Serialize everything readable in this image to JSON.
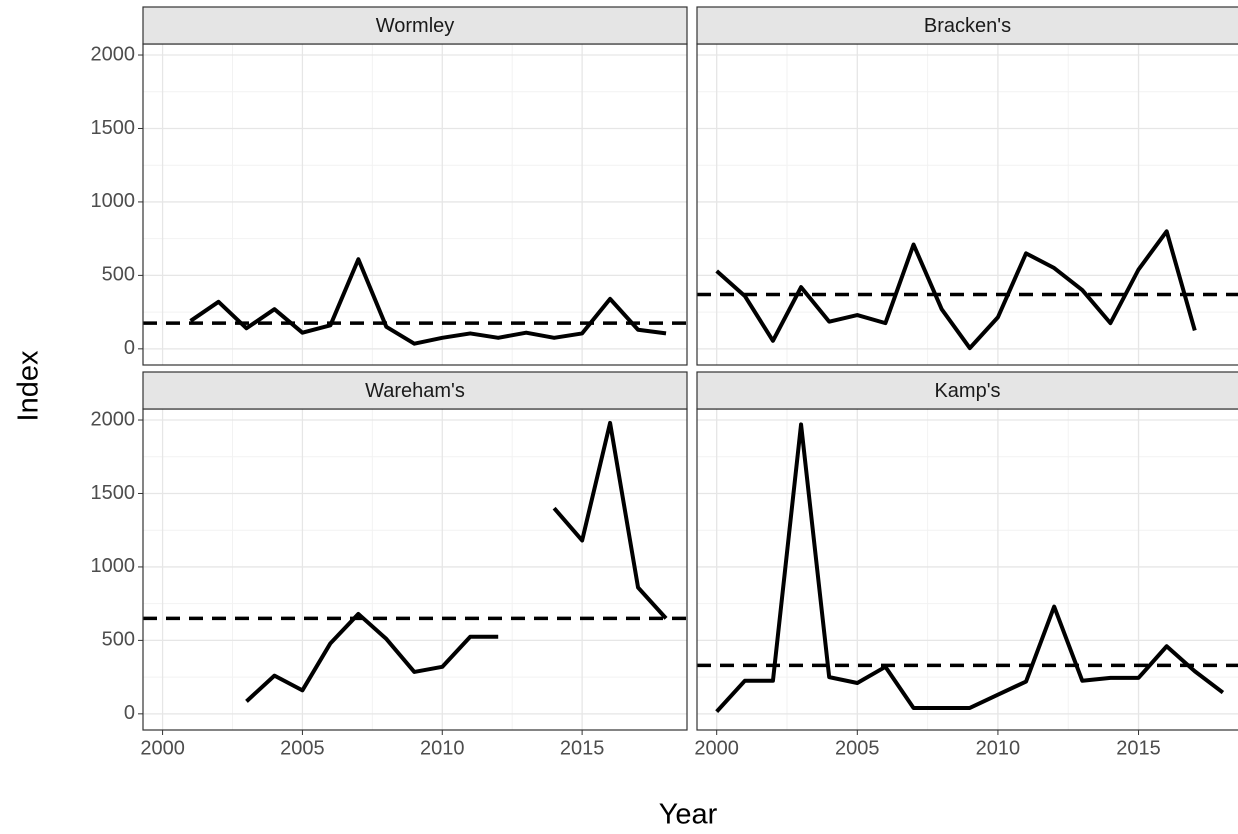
{
  "axis_labels": {
    "x": "Year",
    "y": "Index"
  },
  "chart_data": [
    {
      "type": "line",
      "title": "Wormley",
      "color": "#000000",
      "x": [
        2000,
        2001,
        2002,
        2003,
        2004,
        2005,
        2006,
        2007,
        2008,
        2009,
        2010,
        2011,
        2012,
        2013,
        2014,
        2015,
        2016,
        2017,
        2018
      ],
      "values": [
        null,
        190,
        320,
        140,
        270,
        110,
        160,
        610,
        150,
        35,
        75,
        105,
        75,
        110,
        75,
        105,
        340,
        130,
        105
      ],
      "hline": 175,
      "xlim": [
        1999.3,
        2018.75
      ],
      "ylim": [
        -110,
        2075
      ],
      "xticks": [
        2000,
        2005,
        2010,
        2015
      ],
      "yticks": [
        0,
        500,
        1000,
        1500,
        2000
      ],
      "grid": true
    },
    {
      "type": "line",
      "title": "Bracken's",
      "color": "#000000",
      "x": [
        2000,
        2001,
        2002,
        2003,
        2004,
        2005,
        2006,
        2007,
        2008,
        2009,
        2010,
        2011,
        2012,
        2013,
        2014,
        2015,
        2016,
        2017,
        2018
      ],
      "values": [
        530,
        360,
        55,
        420,
        185,
        230,
        175,
        710,
        270,
        5,
        215,
        650,
        550,
        400,
        175,
        540,
        800,
        125,
        null
      ],
      "hline": 370,
      "xlim": [
        1999.3,
        2018.75
      ],
      "ylim": [
        -110,
        2075
      ],
      "xticks": [
        2000,
        2005,
        2010,
        2015
      ],
      "yticks": [
        0,
        500,
        1000,
        1500,
        2000
      ],
      "grid": true
    },
    {
      "type": "line",
      "title": "Wareham's",
      "color": "#000000",
      "x": [
        2000,
        2001,
        2002,
        2003,
        2004,
        2005,
        2006,
        2007,
        2008,
        2009,
        2010,
        2011,
        2012,
        2013,
        2014,
        2015,
        2016,
        2017,
        2018
      ],
      "values": [
        null,
        null,
        null,
        85,
        260,
        160,
        480,
        680,
        510,
        285,
        320,
        525,
        525,
        null,
        1400,
        1180,
        1980,
        860,
        650
      ],
      "hline": 650,
      "xlim": [
        1999.3,
        2018.75
      ],
      "ylim": [
        -110,
        2075
      ],
      "xticks": [
        2000,
        2005,
        2010,
        2015
      ],
      "yticks": [
        0,
        500,
        1000,
        1500,
        2000
      ],
      "grid": true
    },
    {
      "type": "line",
      "title": "Kamp's",
      "color": "#000000",
      "x": [
        2000,
        2001,
        2002,
        2003,
        2004,
        2005,
        2006,
        2007,
        2008,
        2009,
        2010,
        2011,
        2012,
        2013,
        2014,
        2015,
        2016,
        2017,
        2018
      ],
      "values": [
        15,
        225,
        225,
        1970,
        250,
        210,
        320,
        40,
        40,
        40,
        130,
        220,
        730,
        225,
        245,
        245,
        460,
        290,
        145
      ],
      "hline": 330,
      "xlim": [
        1999.3,
        2018.75
      ],
      "ylim": [
        -110,
        2075
      ],
      "xticks": [
        2000,
        2005,
        2010,
        2015
      ],
      "yticks": [
        0,
        500,
        1000,
        1500,
        2000
      ],
      "grid": true
    }
  ]
}
